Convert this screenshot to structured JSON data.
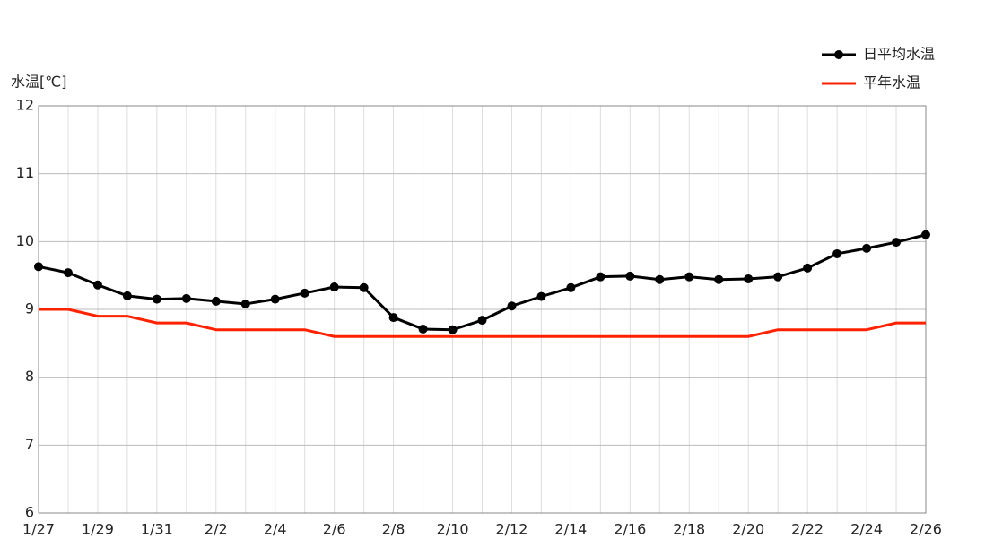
{
  "chart_data": {
    "type": "line",
    "y_label": "水温[℃]",
    "categories": [
      "1/27",
      null,
      "1/29",
      null,
      "1/31",
      null,
      "2/2",
      null,
      "2/4",
      null,
      "2/6",
      null,
      "2/8",
      null,
      "2/10",
      null,
      "2/12",
      null,
      "2/14",
      null,
      "2/16",
      null,
      "2/18",
      null,
      "2/20",
      null,
      "2/22",
      null,
      "2/24",
      null,
      "2/26"
    ],
    "series": [
      {
        "name": "日平均水温",
        "color": "#000000",
        "markers": true,
        "values": [
          9.63,
          9.54,
          9.36,
          9.2,
          9.15,
          9.16,
          9.12,
          9.08,
          9.15,
          9.24,
          9.33,
          9.32,
          8.88,
          8.71,
          8.7,
          8.84,
          9.05,
          9.19,
          9.32,
          9.48,
          9.49,
          9.44,
          9.48,
          9.44,
          9.45,
          9.48,
          9.61,
          9.82,
          9.9,
          9.99,
          10.1
        ]
      },
      {
        "name": "平年水温",
        "color": "#ff2200",
        "markers": false,
        "values": [
          9.0,
          9.0,
          8.9,
          8.9,
          8.8,
          8.8,
          8.7,
          8.7,
          8.7,
          8.7,
          8.6,
          8.6,
          8.6,
          8.6,
          8.6,
          8.6,
          8.6,
          8.6,
          8.6,
          8.6,
          8.6,
          8.6,
          8.6,
          8.6,
          8.6,
          8.7,
          8.7,
          8.7,
          8.7,
          8.8,
          8.8
        ]
      }
    ],
    "ylim": [
      6,
      12
    ],
    "yticks": [
      6,
      7,
      8,
      9,
      10,
      11,
      12
    ],
    "grid": true,
    "legend": "top-right"
  }
}
